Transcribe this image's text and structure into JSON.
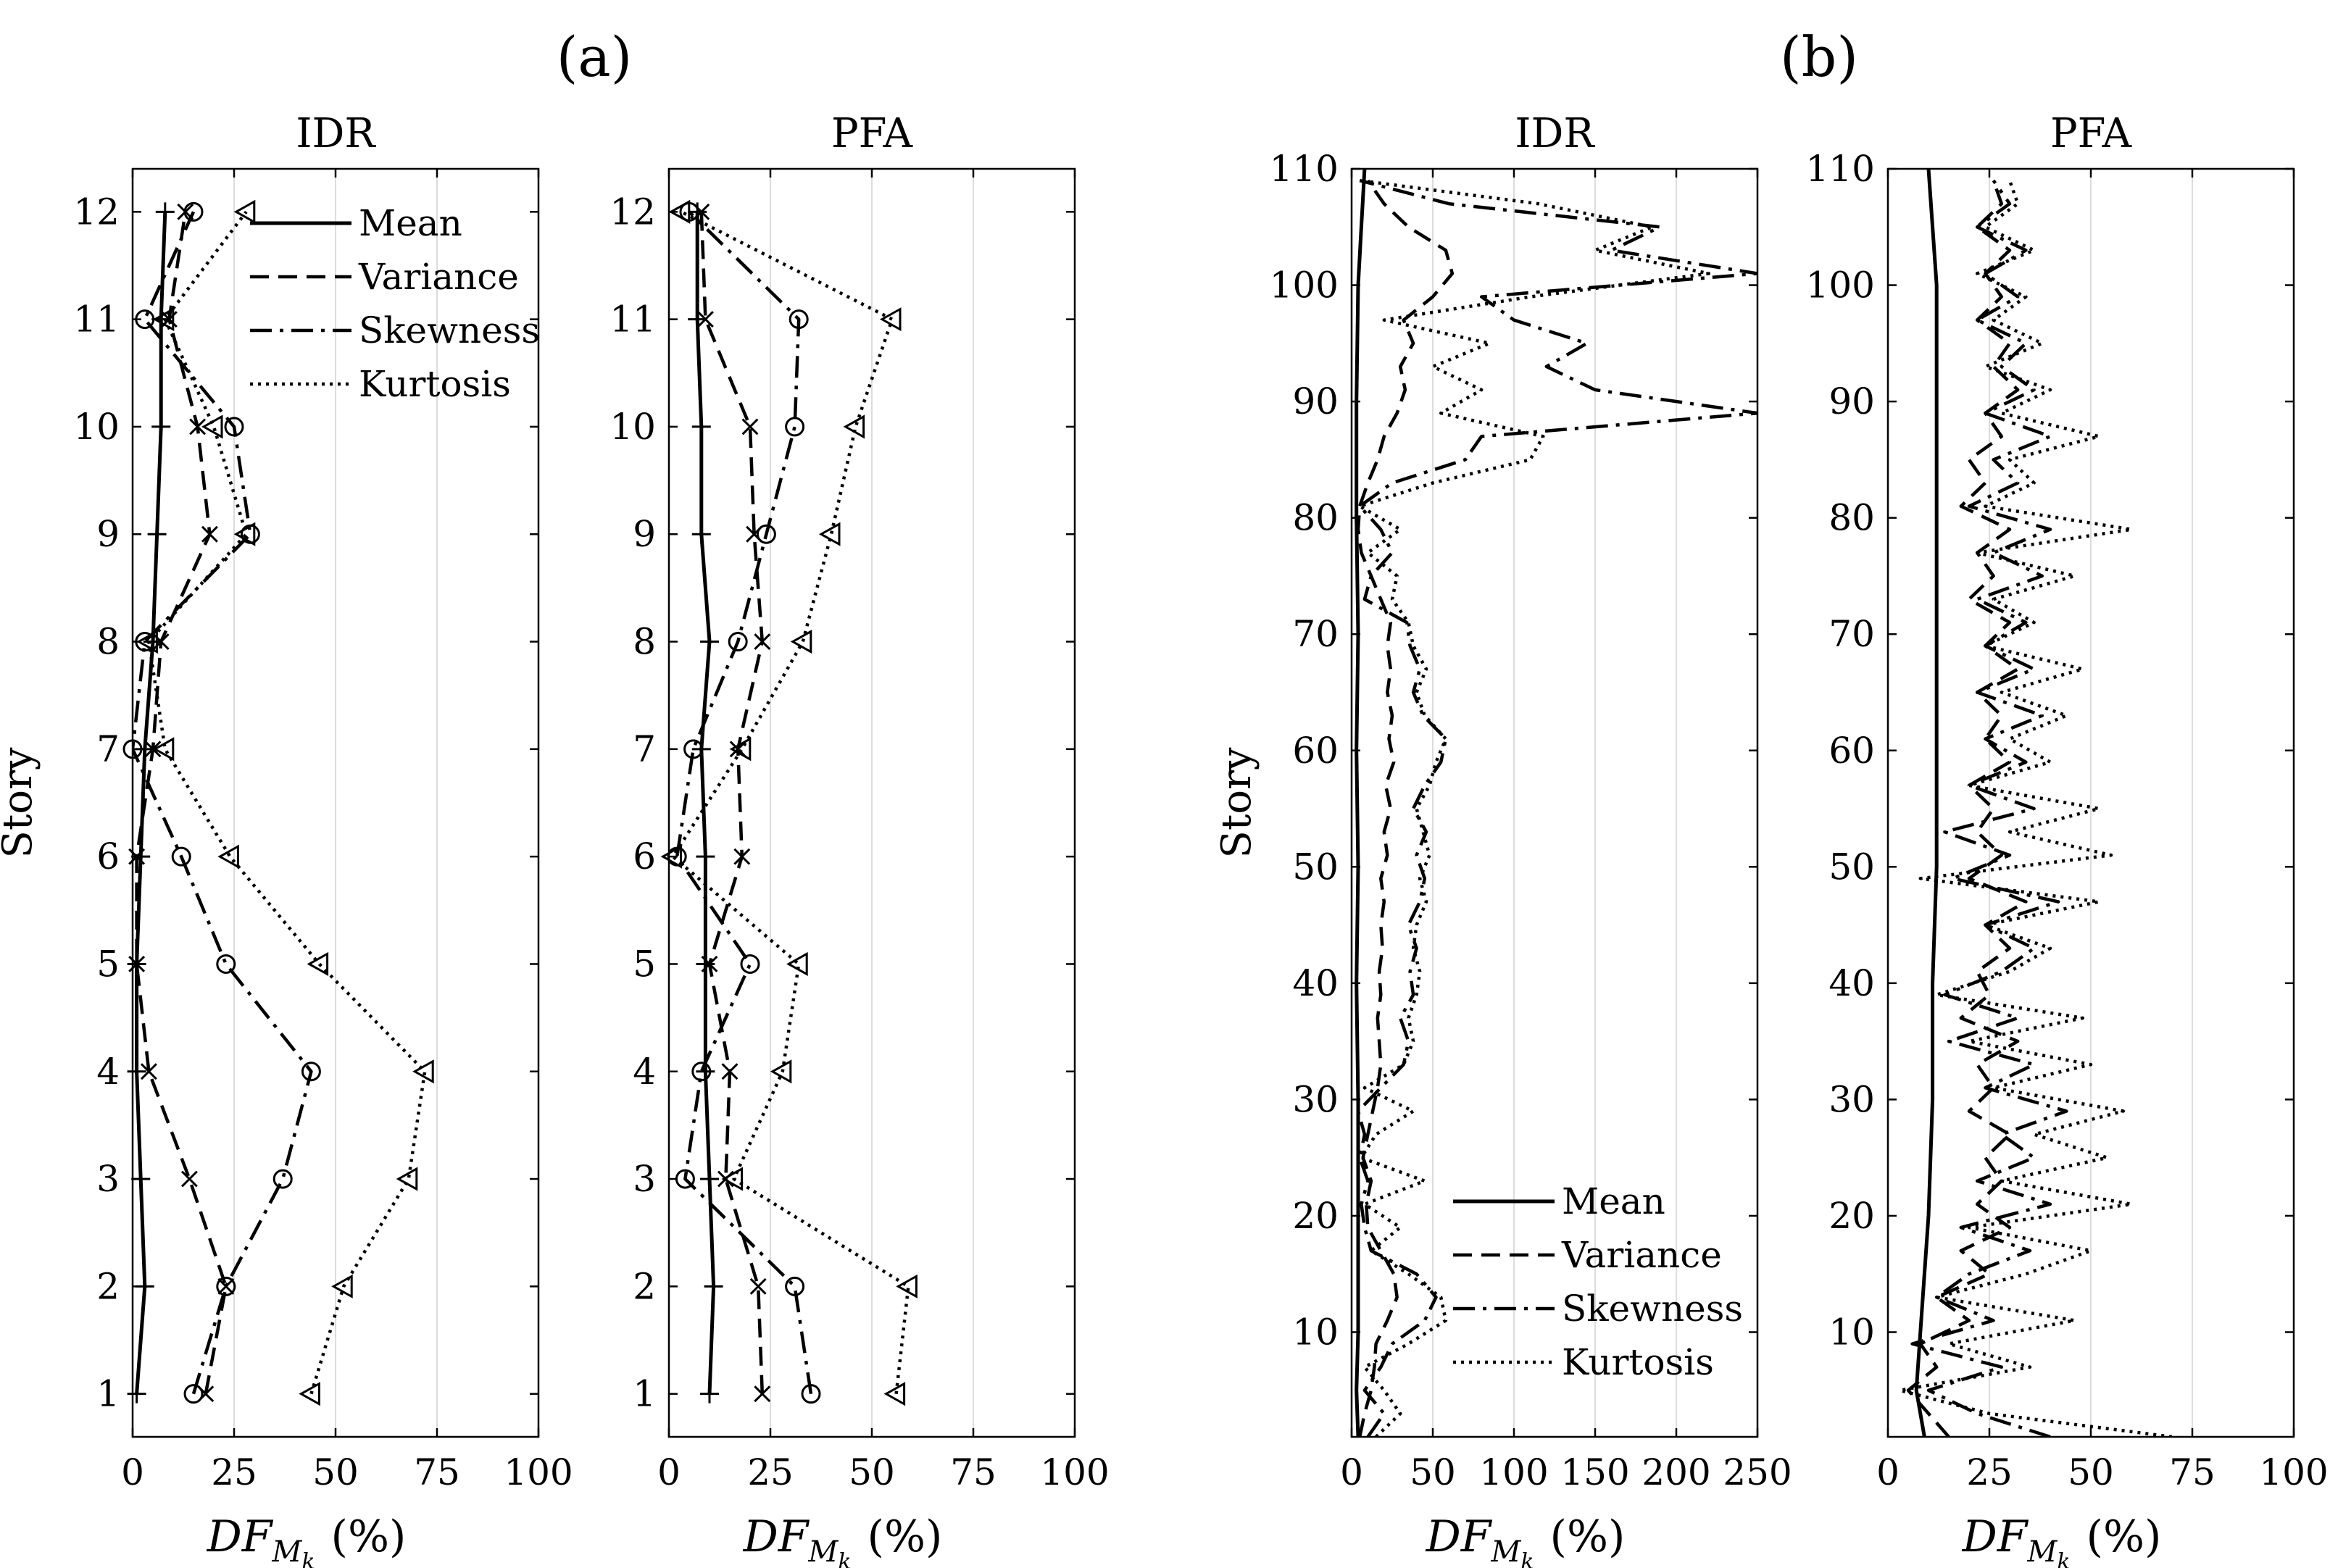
{
  "figure": {
    "label_a": "(a)",
    "label_b": "(b)"
  },
  "chart_data": [
    {
      "type": "line",
      "group": "(a)",
      "title": "IDR",
      "xlabel_main": "DF",
      "xlabel_sub": "M",
      "xlabel_subsub": "k",
      "xlabel_unit": "(%)",
      "ylabel": "Story",
      "xlim": [
        0,
        100
      ],
      "ylim": [
        0.6,
        12.4
      ],
      "xticks": [
        0,
        25,
        50,
        75,
        100
      ],
      "yticks": [
        1,
        2,
        3,
        4,
        5,
        6,
        7,
        8,
        9,
        10,
        11,
        12
      ],
      "grid": "vertical",
      "legend": {
        "position": "top-right",
        "entries": [
          "Mean",
          "Variance",
          "Skewness",
          "Kurtosis"
        ]
      },
      "series": [
        {
          "name": "Mean",
          "style": "solid",
          "marker": "plus",
          "y": [
            1,
            2,
            3,
            4,
            5,
            6,
            7,
            8,
            9,
            10,
            11,
            12
          ],
          "x": [
            1,
            3,
            2,
            1,
            1,
            2,
            3,
            5,
            6,
            7,
            7,
            8
          ]
        },
        {
          "name": "Variance",
          "style": "dashed",
          "marker": "x",
          "y": [
            1,
            2,
            3,
            4,
            5,
            6,
            7,
            8,
            9,
            10,
            11,
            12
          ],
          "x": [
            18,
            23,
            14,
            4,
            1,
            1,
            5,
            7,
            19,
            16,
            9,
            13
          ]
        },
        {
          "name": "Skewness",
          "style": "dashdot",
          "marker": "circle",
          "y": [
            1,
            2,
            3,
            4,
            5,
            6,
            7,
            8,
            9,
            10,
            11,
            12
          ],
          "x": [
            15,
            23,
            37,
            44,
            23,
            12,
            0,
            3,
            29,
            25,
            3,
            15
          ]
        },
        {
          "name": "Kurtosis",
          "style": "dotted",
          "marker": "triangle-left",
          "y": [
            1,
            2,
            3,
            4,
            5,
            6,
            7,
            8,
            9,
            10,
            11,
            12
          ],
          "x": [
            44,
            52,
            68,
            72,
            46,
            24,
            8,
            4,
            28,
            20,
            8,
            28
          ]
        }
      ]
    },
    {
      "type": "line",
      "group": "(a)",
      "title": "PFA",
      "xlabel_main": "DF",
      "xlabel_sub": "M",
      "xlabel_subsub": "k",
      "xlabel_unit": "(%)",
      "xlim": [
        0,
        100
      ],
      "ylim": [
        0.6,
        12.4
      ],
      "xticks": [
        0,
        25,
        50,
        75,
        100
      ],
      "yticks": [
        1,
        2,
        3,
        4,
        5,
        6,
        7,
        8,
        9,
        10,
        11,
        12
      ],
      "grid": "vertical",
      "series": [
        {
          "name": "Mean",
          "style": "solid",
          "marker": "plus",
          "y": [
            1,
            2,
            3,
            4,
            5,
            6,
            7,
            8,
            9,
            10,
            11,
            12
          ],
          "x": [
            10,
            11,
            10,
            9,
            9,
            9,
            8,
            10,
            8,
            8,
            7,
            7
          ]
        },
        {
          "name": "Variance",
          "style": "dashed",
          "marker": "x",
          "y": [
            1,
            2,
            3,
            4,
            5,
            6,
            7,
            8,
            9,
            10,
            11,
            12
          ],
          "x": [
            23,
            22,
            14,
            15,
            10,
            18,
            17,
            23,
            21,
            20,
            9,
            8
          ]
        },
        {
          "name": "Skewness",
          "style": "dashdot",
          "marker": "circle",
          "y": [
            1,
            2,
            3,
            4,
            5,
            6,
            7,
            8,
            9,
            10,
            11,
            12
          ],
          "x": [
            35,
            31,
            4,
            8,
            20,
            2,
            6,
            17,
            24,
            31,
            32,
            5
          ]
        },
        {
          "name": "Kurtosis",
          "style": "dotted",
          "marker": "triangle-left",
          "y": [
            1,
            2,
            3,
            4,
            5,
            6,
            7,
            8,
            9,
            10,
            11,
            12
          ],
          "x": [
            56,
            59,
            16,
            28,
            32,
            1,
            18,
            33,
            40,
            46,
            55,
            3
          ]
        }
      ]
    },
    {
      "type": "line",
      "group": "(b)",
      "title": "IDR",
      "xlabel_main": "DF",
      "xlabel_sub": "M",
      "xlabel_subsub": "k",
      "xlabel_unit": "(%)",
      "ylabel": "Story",
      "xlim": [
        0,
        250
      ],
      "ylim": [
        1,
        110
      ],
      "xticks": [
        0,
        50,
        100,
        150,
        200,
        250
      ],
      "yticks": [
        10,
        20,
        30,
        40,
        50,
        60,
        70,
        80,
        90,
        100,
        110
      ],
      "grid": "vertical",
      "legend": {
        "position": "bottom-right",
        "entries": [
          "Mean",
          "Variance",
          "Skewness",
          "Kurtosis"
        ]
      },
      "series": [
        {
          "name": "Mean",
          "style": "solid",
          "y": [
            1,
            5,
            10,
            20,
            30,
            40,
            50,
            60,
            70,
            80,
            90,
            100,
            105,
            110
          ],
          "x": [
            4,
            3,
            4,
            4,
            4,
            3,
            4,
            3,
            4,
            3,
            3,
            4,
            6,
            8
          ]
        },
        {
          "name": "Variance",
          "style": "dashed",
          "y": [
            1,
            3,
            5,
            7,
            9,
            11,
            13,
            15,
            17,
            19,
            21,
            23,
            25,
            27,
            29,
            31,
            33,
            35,
            37,
            39,
            41,
            43,
            45,
            47,
            49,
            51,
            53,
            55,
            57,
            59,
            61,
            63,
            65,
            67,
            69,
            71,
            73,
            75,
            77,
            79,
            81,
            83,
            85,
            87,
            89,
            91,
            93,
            95,
            97,
            99,
            101,
            103,
            105,
            107,
            109
          ],
          "x": [
            5,
            8,
            12,
            14,
            15,
            22,
            28,
            26,
            18,
            10,
            9,
            12,
            7,
            10,
            13,
            16,
            18,
            17,
            16,
            18,
            17,
            19,
            18,
            20,
            18,
            22,
            20,
            24,
            21,
            26,
            23,
            25,
            22,
            24,
            22,
            24,
            18,
            12,
            6,
            4,
            5,
            10,
            16,
            20,
            28,
            33,
            30,
            38,
            32,
            50,
            62,
            58,
            35,
            20,
            10
          ]
        },
        {
          "name": "Skewness",
          "style": "dashdot",
          "y": [
            1,
            3,
            5,
            7,
            9,
            11,
            13,
            15,
            17,
            19,
            21,
            23,
            25,
            27,
            29,
            31,
            33,
            35,
            37,
            39,
            41,
            43,
            45,
            47,
            49,
            51,
            53,
            55,
            57,
            59,
            61,
            63,
            65,
            67,
            69,
            71,
            73,
            75,
            77,
            79,
            81,
            83,
            85,
            87,
            89,
            91,
            93,
            95,
            97,
            99,
            101,
            103,
            105,
            107,
            109
          ],
          "x": [
            10,
            20,
            8,
            18,
            25,
            45,
            52,
            40,
            12,
            8,
            6,
            10,
            5,
            8,
            4,
            18,
            32,
            35,
            30,
            38,
            36,
            40,
            35,
            42,
            45,
            40,
            46,
            38,
            45,
            55,
            58,
            44,
            38,
            42,
            36,
            34,
            8,
            12,
            25,
            18,
            5,
            25,
            70,
            80,
            250,
            150,
            120,
            145,
            100,
            80,
            250,
            160,
            190,
            60,
            5
          ]
        },
        {
          "name": "Kurtosis",
          "style": "dotted",
          "y": [
            1,
            3,
            5,
            7,
            9,
            11,
            13,
            15,
            17,
            19,
            21,
            23,
            25,
            27,
            29,
            31,
            33,
            35,
            37,
            39,
            41,
            43,
            45,
            47,
            49,
            51,
            53,
            55,
            57,
            59,
            61,
            63,
            65,
            67,
            69,
            71,
            73,
            75,
            77,
            79,
            81,
            83,
            85,
            87,
            89,
            91,
            93,
            95,
            97,
            99,
            101,
            103,
            105,
            107,
            109
          ],
          "x": [
            15,
            30,
            20,
            8,
            35,
            58,
            55,
            35,
            12,
            30,
            8,
            45,
            6,
            15,
            38,
            8,
            32,
            38,
            35,
            40,
            42,
            38,
            40,
            46,
            42,
            48,
            44,
            40,
            48,
            52,
            58,
            45,
            40,
            46,
            38,
            35,
            25,
            28,
            10,
            30,
            5,
            50,
            110,
            118,
            55,
            80,
            50,
            85,
            20,
            110,
            220,
            150,
            185,
            115,
            5
          ]
        }
      ]
    },
    {
      "type": "line",
      "group": "(b)",
      "title": "PFA",
      "xlabel_main": "DF",
      "xlabel_sub": "M",
      "xlabel_subsub": "k",
      "xlabel_unit": "(%)",
      "xlim": [
        0,
        100
      ],
      "ylim": [
        1,
        110
      ],
      "xticks": [
        0,
        25,
        50,
        75,
        100
      ],
      "yticks": [
        10,
        20,
        30,
        40,
        50,
        60,
        70,
        80,
        90,
        100,
        110
      ],
      "grid": "vertical",
      "series": [
        {
          "name": "Mean",
          "style": "solid",
          "y": [
            1,
            5,
            10,
            20,
            30,
            40,
            50,
            60,
            70,
            80,
            90,
            100,
            105,
            110
          ],
          "x": [
            9,
            7,
            8,
            10,
            11,
            11,
            12,
            12,
            12,
            12,
            12,
            12,
            11,
            10
          ]
        },
        {
          "name": "Variance",
          "style": "dashed",
          "y": [
            1,
            3,
            5,
            7,
            9,
            11,
            13,
            15,
            17,
            19,
            21,
            23,
            25,
            27,
            29,
            31,
            33,
            35,
            37,
            39,
            41,
            43,
            45,
            47,
            49,
            51,
            53,
            55,
            57,
            59,
            61,
            63,
            65,
            67,
            69,
            71,
            73,
            75,
            77,
            79,
            81,
            83,
            85,
            87,
            89,
            91,
            93,
            95,
            97,
            99,
            101,
            103,
            105,
            107,
            109
          ],
          "x": [
            15,
            10,
            5,
            12,
            8,
            20,
            12,
            25,
            18,
            30,
            22,
            28,
            24,
            30,
            20,
            26,
            22,
            32,
            18,
            25,
            22,
            30,
            24,
            34,
            20,
            28,
            22,
            26,
            20,
            30,
            24,
            28,
            22,
            32,
            24,
            30,
            20,
            26,
            22,
            30,
            18,
            24,
            20,
            28,
            24,
            32,
            26,
            30,
            22,
            28,
            24,
            30,
            22,
            28,
            26
          ]
        },
        {
          "name": "Skewness",
          "style": "dashdot",
          "y": [
            1,
            3,
            5,
            7,
            9,
            11,
            13,
            15,
            17,
            19,
            21,
            23,
            25,
            27,
            29,
            31,
            33,
            35,
            37,
            39,
            41,
            43,
            45,
            47,
            49,
            51,
            53,
            55,
            57,
            59,
            61,
            63,
            65,
            67,
            69,
            71,
            73,
            75,
            77,
            79,
            81,
            83,
            85,
            87,
            89,
            91,
            93,
            95,
            97,
            99,
            101,
            103,
            105,
            107,
            109
          ],
          "x": [
            40,
            22,
            10,
            28,
            6,
            26,
            12,
            20,
            35,
            18,
            40,
            22,
            36,
            28,
            44,
            24,
            36,
            15,
            32,
            14,
            28,
            36,
            24,
            42,
            16,
            30,
            14,
            36,
            20,
            34,
            24,
            38,
            22,
            36,
            24,
            34,
            22,
            38,
            26,
            40,
            20,
            32,
            26,
            40,
            24,
            36,
            28,
            34,
            22,
            32,
            24,
            34,
            22,
            30,
            26
          ]
        },
        {
          "name": "Kurtosis",
          "style": "dotted",
          "y": [
            1,
            3,
            5,
            7,
            9,
            11,
            13,
            15,
            17,
            19,
            21,
            23,
            25,
            27,
            29,
            31,
            33,
            35,
            37,
            39,
            41,
            43,
            45,
            47,
            49,
            51,
            53,
            55,
            57,
            59,
            61,
            63,
            65,
            67,
            69,
            71,
            73,
            75,
            77,
            79,
            81,
            83,
            85,
            87,
            89,
            91,
            93,
            95,
            97,
            99,
            101,
            103,
            105,
            107,
            109
          ],
          "x": [
            70,
            25,
            3,
            35,
            15,
            46,
            12,
            34,
            50,
            20,
            60,
            28,
            54,
            36,
            58,
            26,
            50,
            20,
            48,
            12,
            30,
            40,
            24,
            52,
            8,
            55,
            30,
            52,
            20,
            40,
            30,
            44,
            28,
            48,
            24,
            36,
            26,
            46,
            22,
            60,
            24,
            36,
            30,
            52,
            28,
            40,
            24,
            38,
            26,
            34,
            22,
            36,
            24,
            32,
            30
          ]
        }
      ]
    }
  ]
}
